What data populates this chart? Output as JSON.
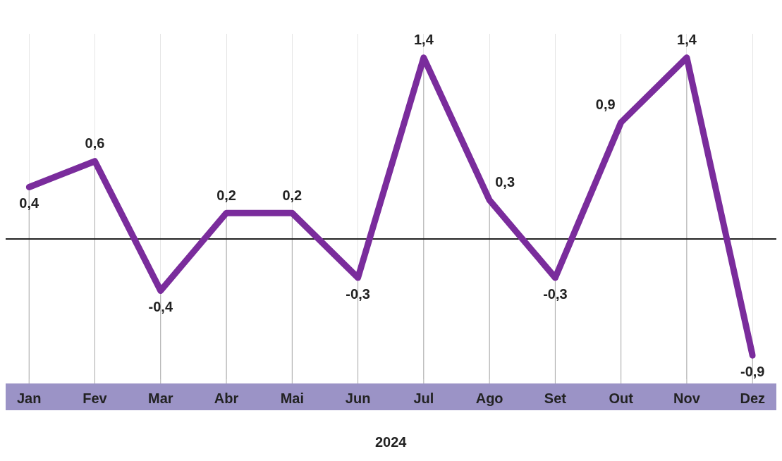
{
  "chart_data": {
    "type": "line",
    "xlabel": "2024",
    "categories": [
      "Jan",
      "Fev",
      "Mar",
      "Abr",
      "Mai",
      "Jun",
      "Jul",
      "Ago",
      "Set",
      "Out",
      "Nov",
      "Dez"
    ],
    "series": [
      {
        "color": "#7a2c9c",
        "values": [
          0.4,
          0.6,
          -0.4,
          0.2,
          0.2,
          -0.3,
          1.4,
          0.3,
          -0.3,
          0.9,
          1.4,
          -0.9
        ],
        "value_labels": [
          "0,4",
          "0,6",
          "-0,4",
          "0,2",
          "0,2",
          "-0,3",
          "1,4",
          "0,3",
          "-0,3",
          "0,9",
          "1,4",
          "-0,9"
        ]
      }
    ],
    "marker": "none",
    "line_style": "solid",
    "grid": "x"
  }
}
